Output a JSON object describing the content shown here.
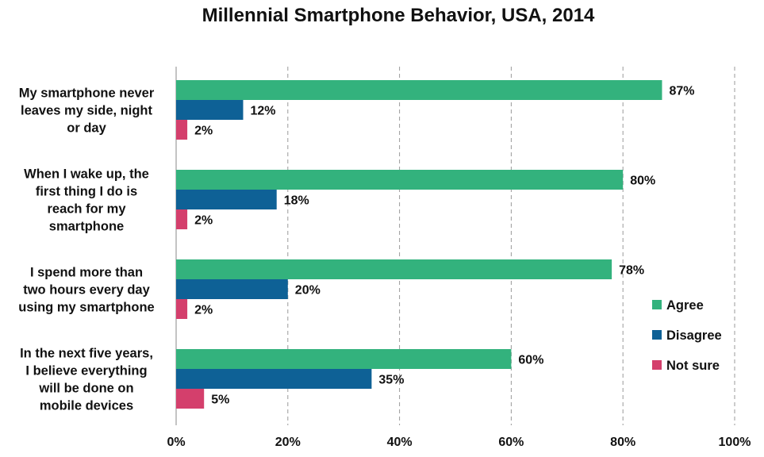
{
  "chart_data": {
    "type": "bar",
    "orientation": "horizontal",
    "title": "Millennial Smartphone Behavior, USA, 2014",
    "categories": [
      [
        "My smartphone never",
        "leaves my side, night",
        "or day"
      ],
      [
        "When I wake up, the",
        "first thing I do is",
        "reach for my",
        "smartphone"
      ],
      [
        "I spend more than",
        "two hours every day",
        "using my smartphone"
      ],
      [
        "In the next five years,",
        "I believe everything",
        "will be done on",
        "mobile devices"
      ]
    ],
    "series": [
      {
        "name": "Agree",
        "color": "#33b27d",
        "values": [
          87,
          80,
          78,
          60
        ],
        "labels": [
          "87%",
          "80%",
          "78%",
          "60%"
        ]
      },
      {
        "name": "Disagree",
        "color": "#0e6196",
        "values": [
          12,
          18,
          20,
          35
        ],
        "labels": [
          "12%",
          "18%",
          "20%",
          "35%"
        ]
      },
      {
        "name": "Not sure",
        "color": "#d43f6c",
        "values": [
          2,
          2,
          2,
          5
        ],
        "labels": [
          "2%",
          "2%",
          "2%",
          "5%"
        ]
      }
    ],
    "xlim": [
      0,
      100
    ],
    "xticks": [
      0,
      20,
      40,
      60,
      80,
      100
    ],
    "xtick_labels": [
      "0%",
      "20%",
      "40%",
      "60%",
      "80%",
      "100%"
    ],
    "grid": "vertical-dashed",
    "legend_position": "right"
  }
}
